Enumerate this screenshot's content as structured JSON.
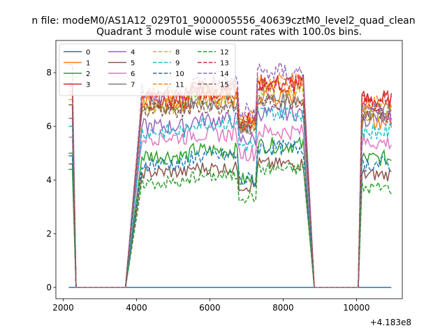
{
  "figure": {
    "suptitle": "n file: modeM0/AS1A12_029T01_9000005556_40639cztM0_level2_quad_clean"
  },
  "chart_data": {
    "type": "line",
    "title": "Quadrant 3 module wise count rates with 100.0s bins.",
    "xlabel": "",
    "ylabel": "",
    "x_offset_label": "+4.183e8",
    "xlim": [
      1800,
      11250
    ],
    "ylim": [
      -0.42,
      9.2
    ],
    "xticks": [
      2000,
      4000,
      6000,
      8000,
      10000
    ],
    "yticks": [
      0,
      2,
      4,
      6,
      8
    ],
    "grid": false,
    "legend_position": "top-left",
    "legend_columns": 4,
    "segments": [
      {
        "on_start": 2150,
        "on_end": 2250,
        "drop_end": 2350,
        "rise_start": 3700,
        "rise_end": 4150
      },
      {
        "plateau_end": 8550,
        "drop_end": 8850,
        "rise_start": 10050,
        "rise_end": 10150,
        "end": 10950
      }
    ],
    "series": [
      {
        "name": "0",
        "color": "#1f77b4",
        "dash": "solid",
        "start": 0,
        "level_a": 0,
        "level_b": 0,
        "dip": 0,
        "end_level": 0,
        "noise": 0
      },
      {
        "name": "1",
        "color": "#ff7f0e",
        "dash": "solid",
        "start": 7.2,
        "level_a": 6.9,
        "level_b": 7.1,
        "dip": 6.0,
        "end_level": 6.2,
        "noise": 0.35
      },
      {
        "name": "2",
        "color": "#2ca02c",
        "dash": "solid",
        "start": 5.0,
        "level_a": 4.9,
        "level_b": 5.3,
        "dip": 4.0,
        "end_level": 4.8,
        "noise": 0.3
      },
      {
        "name": "3",
        "color": "#d62728",
        "dash": "solid",
        "start": 7.6,
        "level_a": 7.0,
        "level_b": 7.6,
        "dip": 6.2,
        "end_level": 7.0,
        "noise": 0.35
      },
      {
        "name": "4",
        "color": "#9467bd",
        "dash": "solid",
        "start": 6.3,
        "level_a": 6.0,
        "level_b": 6.5,
        "dip": 5.5,
        "end_level": 6.3,
        "noise": 0.3
      },
      {
        "name": "5",
        "color": "#8c564b",
        "dash": "solid",
        "start": 4.6,
        "level_a": 4.3,
        "level_b": 4.6,
        "dip": 3.8,
        "end_level": 4.2,
        "noise": 0.25
      },
      {
        "name": "6",
        "color": "#e377c2",
        "dash": "solid",
        "start": 5.6,
        "level_a": 5.6,
        "level_b": 5.8,
        "dip": 5.0,
        "end_level": 5.4,
        "noise": 0.3
      },
      {
        "name": "7",
        "color": "#7f7f7f",
        "dash": "solid",
        "start": 6.8,
        "level_a": 6.7,
        "level_b": 7.0,
        "dip": 6.0,
        "end_level": 6.6,
        "noise": 0.3
      },
      {
        "name": "8",
        "color": "#bcbd22",
        "dash": "dashed",
        "start": 7.0,
        "level_a": 6.8,
        "level_b": 7.4,
        "dip": 6.0,
        "end_level": 6.5,
        "noise": 0.35
      },
      {
        "name": "9",
        "color": "#17becf",
        "dash": "dashed",
        "start": 6.0,
        "level_a": 5.8,
        "level_b": 6.5,
        "dip": 5.3,
        "end_level": 5.8,
        "noise": 0.3
      },
      {
        "name": "10",
        "color": "#1f77b4",
        "dash": "dashed",
        "start": 4.9,
        "level_a": 4.6,
        "level_b": 5.2,
        "dip": 4.0,
        "end_level": 4.6,
        "noise": 0.3
      },
      {
        "name": "11",
        "color": "#ff7f0e",
        "dash": "dashed",
        "start": 7.3,
        "level_a": 7.1,
        "level_b": 7.7,
        "dip": 6.3,
        "end_level": 6.8,
        "noise": 0.35
      },
      {
        "name": "12",
        "color": "#2ca02c",
        "dash": "dashed",
        "start": 4.4,
        "level_a": 3.9,
        "level_b": 4.4,
        "dip": 3.4,
        "end_level": 3.7,
        "noise": 0.25
      },
      {
        "name": "13",
        "color": "#d62728",
        "dash": "dashed",
        "start": 7.5,
        "level_a": 7.0,
        "level_b": 7.6,
        "dip": 6.1,
        "end_level": 6.9,
        "noise": 0.35
      },
      {
        "name": "14",
        "color": "#9467bd",
        "dash": "dashed",
        "start": 8.3,
        "level_a": 7.2,
        "level_b": 8.0,
        "dip": 6.5,
        "end_level": 6.5,
        "noise": 0.4
      },
      {
        "name": "15",
        "color": "#8c564b",
        "dash": "dashed",
        "start": 6.8,
        "level_a": 6.6,
        "level_b": 6.9,
        "dip": 5.9,
        "end_level": 6.4,
        "noise": 0.3
      }
    ]
  }
}
